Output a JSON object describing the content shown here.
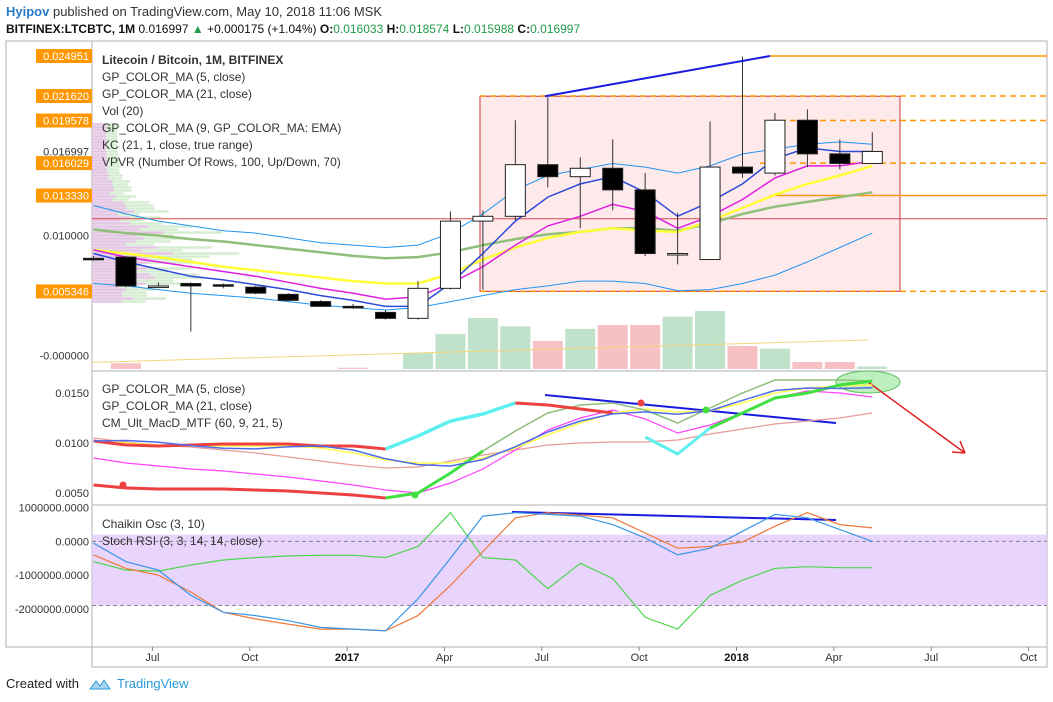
{
  "header": {
    "author": "Hyipov",
    "published_text": "published on TradingView.com, May 10, 2018 11:06 MSK",
    "symbol": "BITFINEX:LTCBTC, 1M",
    "last": "0.016997",
    "change": "+0.000175 (+1.04%)",
    "o_label": "O:",
    "o": "0.016033",
    "h_label": "H:",
    "h": "0.018574",
    "l_label": "L:",
    "l": "0.015988",
    "c_label": "C:",
    "c": "0.016997"
  },
  "footer": {
    "created_with": "Created with",
    "brand": "TradingView"
  },
  "colors": {
    "up": "#ffffff",
    "down": "#000000",
    "kc": "#2196f3",
    "ma5": "#2c4bd8",
    "ma21_main": "#ffff38",
    "ema9": "#e01fe0",
    "ma_green": "#8fbf7a",
    "orange": "#ff9800",
    "box_fill": "#fde2e4",
    "box_stroke": "#c8393f",
    "trend_blue": "#1a1ae0",
    "tag_orange": "#ff9800",
    "stoch_band": "#e2c9fb",
    "arrow_red": "#e01f1f",
    "ellipse_green": "#7ee07e"
  },
  "main_panel": {
    "legend": [
      "Litecoin / Bitcoin, 1M, BITFINEX",
      "GP_COLOR_MA (5, close)",
      "GP_COLOR_MA (21, close)",
      "Vol (20)",
      "GP_COLOR_MA (9, GP_COLOR_MA: EMA)",
      "KC (21, 1, close, true range)",
      "VPVR (Number Of Rows, 100, Up/Down, 70)"
    ],
    "y_axis_labels": [
      "0.024951",
      "0.021620",
      "0.019578",
      "0.016997",
      "0.016029",
      "0.013330",
      "0.010000",
      "0.005346",
      "-0.000000"
    ],
    "tagged_labels": [
      "0.024951",
      "0.021620",
      "0.019578",
      "0.016029",
      "0.013330",
      "0.005346"
    ]
  },
  "chart_data": [
    {
      "type": "candlestick",
      "title": "Litecoin / Bitcoin, 1M, BITFINEX",
      "ylim": [
        -0.0012,
        0.0262
      ],
      "x": [
        "2016-05",
        "2016-06",
        "2016-07",
        "2016-08",
        "2016-09",
        "2016-10",
        "2016-11",
        "2016-12",
        "2017-01",
        "2017-02",
        "2017-03",
        "2017-04",
        "2017-05",
        "2017-06",
        "2017-07",
        "2017-08",
        "2017-09",
        "2017-10",
        "2017-11",
        "2017-12",
        "2018-01",
        "2018-02",
        "2018-03",
        "2018-04",
        "2018-05"
      ],
      "open": [
        0.0081,
        0.0082,
        0.0058,
        0.006,
        0.0059,
        0.0057,
        0.0051,
        0.0045,
        0.0041,
        0.0036,
        0.0031,
        0.0056,
        0.0112,
        0.0116,
        0.0159,
        0.0149,
        0.0156,
        0.0138,
        0.0085,
        0.008,
        0.0157,
        0.0152,
        0.0196,
        0.0168,
        0.016
      ],
      "close": [
        0.008,
        0.0058,
        0.0058,
        0.0058,
        0.0058,
        0.0052,
        0.0046,
        0.0041,
        0.004,
        0.0031,
        0.0056,
        0.0112,
        0.0116,
        0.0159,
        0.0149,
        0.0156,
        0.0138,
        0.0085,
        0.0085,
        0.0157,
        0.0152,
        0.0196,
        0.0168,
        0.016,
        0.017
      ],
      "high": [
        0.0083,
        0.0083,
        0.0061,
        0.0061,
        0.006,
        0.0058,
        0.0052,
        0.0046,
        0.0043,
        0.0038,
        0.0062,
        0.012,
        0.0121,
        0.0196,
        0.0215,
        0.0165,
        0.018,
        0.0152,
        0.0119,
        0.0195,
        0.0249,
        0.0202,
        0.0205,
        0.018,
        0.0186
      ],
      "low": [
        0.0079,
        0.0057,
        0.0057,
        0.002,
        0.0056,
        0.0051,
        0.0045,
        0.0041,
        0.0039,
        0.003,
        0.003,
        0.0055,
        0.0055,
        0.0113,
        0.014,
        0.0106,
        0.0121,
        0.0083,
        0.0076,
        0.008,
        0.0148,
        0.015,
        0.0157,
        0.0155,
        0.016
      ],
      "volume": [
        0,
        0.0009,
        0,
        0,
        0,
        0,
        0,
        0,
        0.0002,
        0,
        0.0025,
        0.0055,
        0.008,
        0.0067,
        0.0044,
        0.0063,
        0.0069,
        0.0069,
        0.0082,
        0.0091,
        0.0036,
        0.0032,
        0.0011,
        0.0011,
        0.0004
      ]
    },
    {
      "type": "line",
      "title": "CM_Ult_MacD_MTF (60, 9, 21, 5)",
      "ylim": [
        0.0038,
        0.0172
      ],
      "y_ticks": [
        "0.0150",
        "0.0100",
        "0.0050"
      ],
      "legend": [
        "GP_COLOR_MA (5, close)",
        "GP_COLOR_MA (21, close)",
        "CM_Ult_MacD_MTF (60, 9, 21, 5)"
      ]
    },
    {
      "type": "line",
      "title": "Chaikin Osc (3, 10)",
      "ylim": [
        -3100000,
        1050000
      ],
      "y_ticks": [
        "1000000.0000",
        "0.0000",
        "-1000000.0000",
        "-2000000.0000"
      ],
      "legend": [
        "Chaikin Osc (3, 10)",
        "Stoch RSI (3, 3, 14, 14, close)"
      ]
    }
  ],
  "x_axis": {
    "labels": [
      "Jul",
      "Oct",
      "2017",
      "Apr",
      "Jul",
      "Oct",
      "2018",
      "Apr",
      "Jul",
      "Oct"
    ],
    "bold": [
      "2017",
      "2018"
    ]
  }
}
